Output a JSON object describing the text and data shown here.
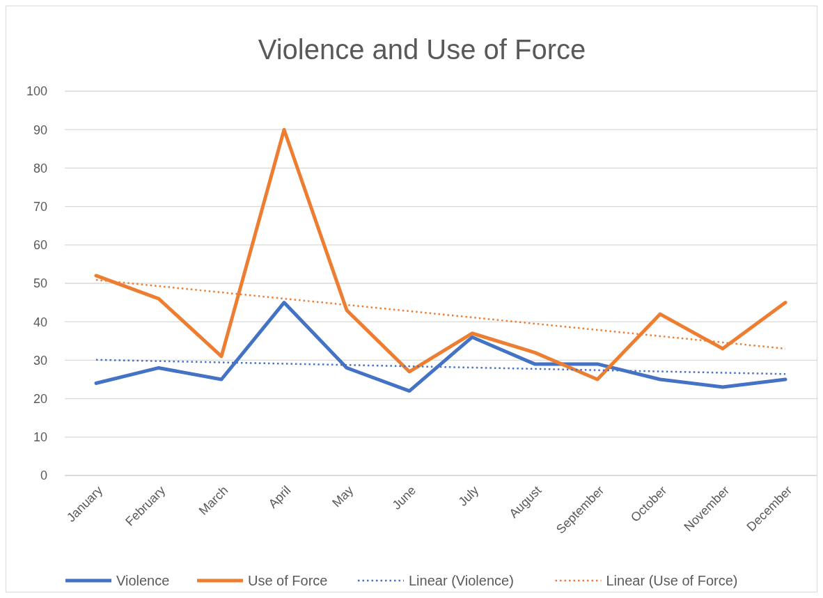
{
  "chart_data": {
    "type": "line",
    "title": "Violence and Use of Force",
    "categories": [
      "January",
      "February",
      "March",
      "April",
      "May",
      "June",
      "July",
      "August",
      "September",
      "October",
      "November",
      "December"
    ],
    "series": [
      {
        "name": "Violence",
        "color": "#4472c4",
        "values": [
          24,
          28,
          25,
          45,
          28,
          22,
          36,
          29,
          29,
          25,
          23,
          25
        ]
      },
      {
        "name": "Use of Force",
        "color": "#ed7d31",
        "values": [
          52,
          46,
          31,
          90,
          43,
          27,
          37,
          32,
          25,
          42,
          33,
          45
        ]
      },
      {
        "name": "Linear (Violence)",
        "color": "#4472c4",
        "type": "line",
        "line_style": "dotted",
        "x": [
          "January",
          "December"
        ],
        "values": [
          30.1,
          26.4
        ]
      },
      {
        "name": "Linear (Use of Force)",
        "color": "#ed7d31",
        "type": "line",
        "line_style": "dotted",
        "x": [
          "January",
          "December"
        ],
        "values": [
          50.9,
          33.0
        ]
      }
    ],
    "ylim": [
      0,
      100
    ],
    "yticks": [
      0,
      10,
      20,
      30,
      40,
      50,
      60,
      70,
      80,
      90,
      100
    ],
    "grid": "y",
    "legend": "bottom",
    "marker": "none",
    "line_style": "solid"
  }
}
